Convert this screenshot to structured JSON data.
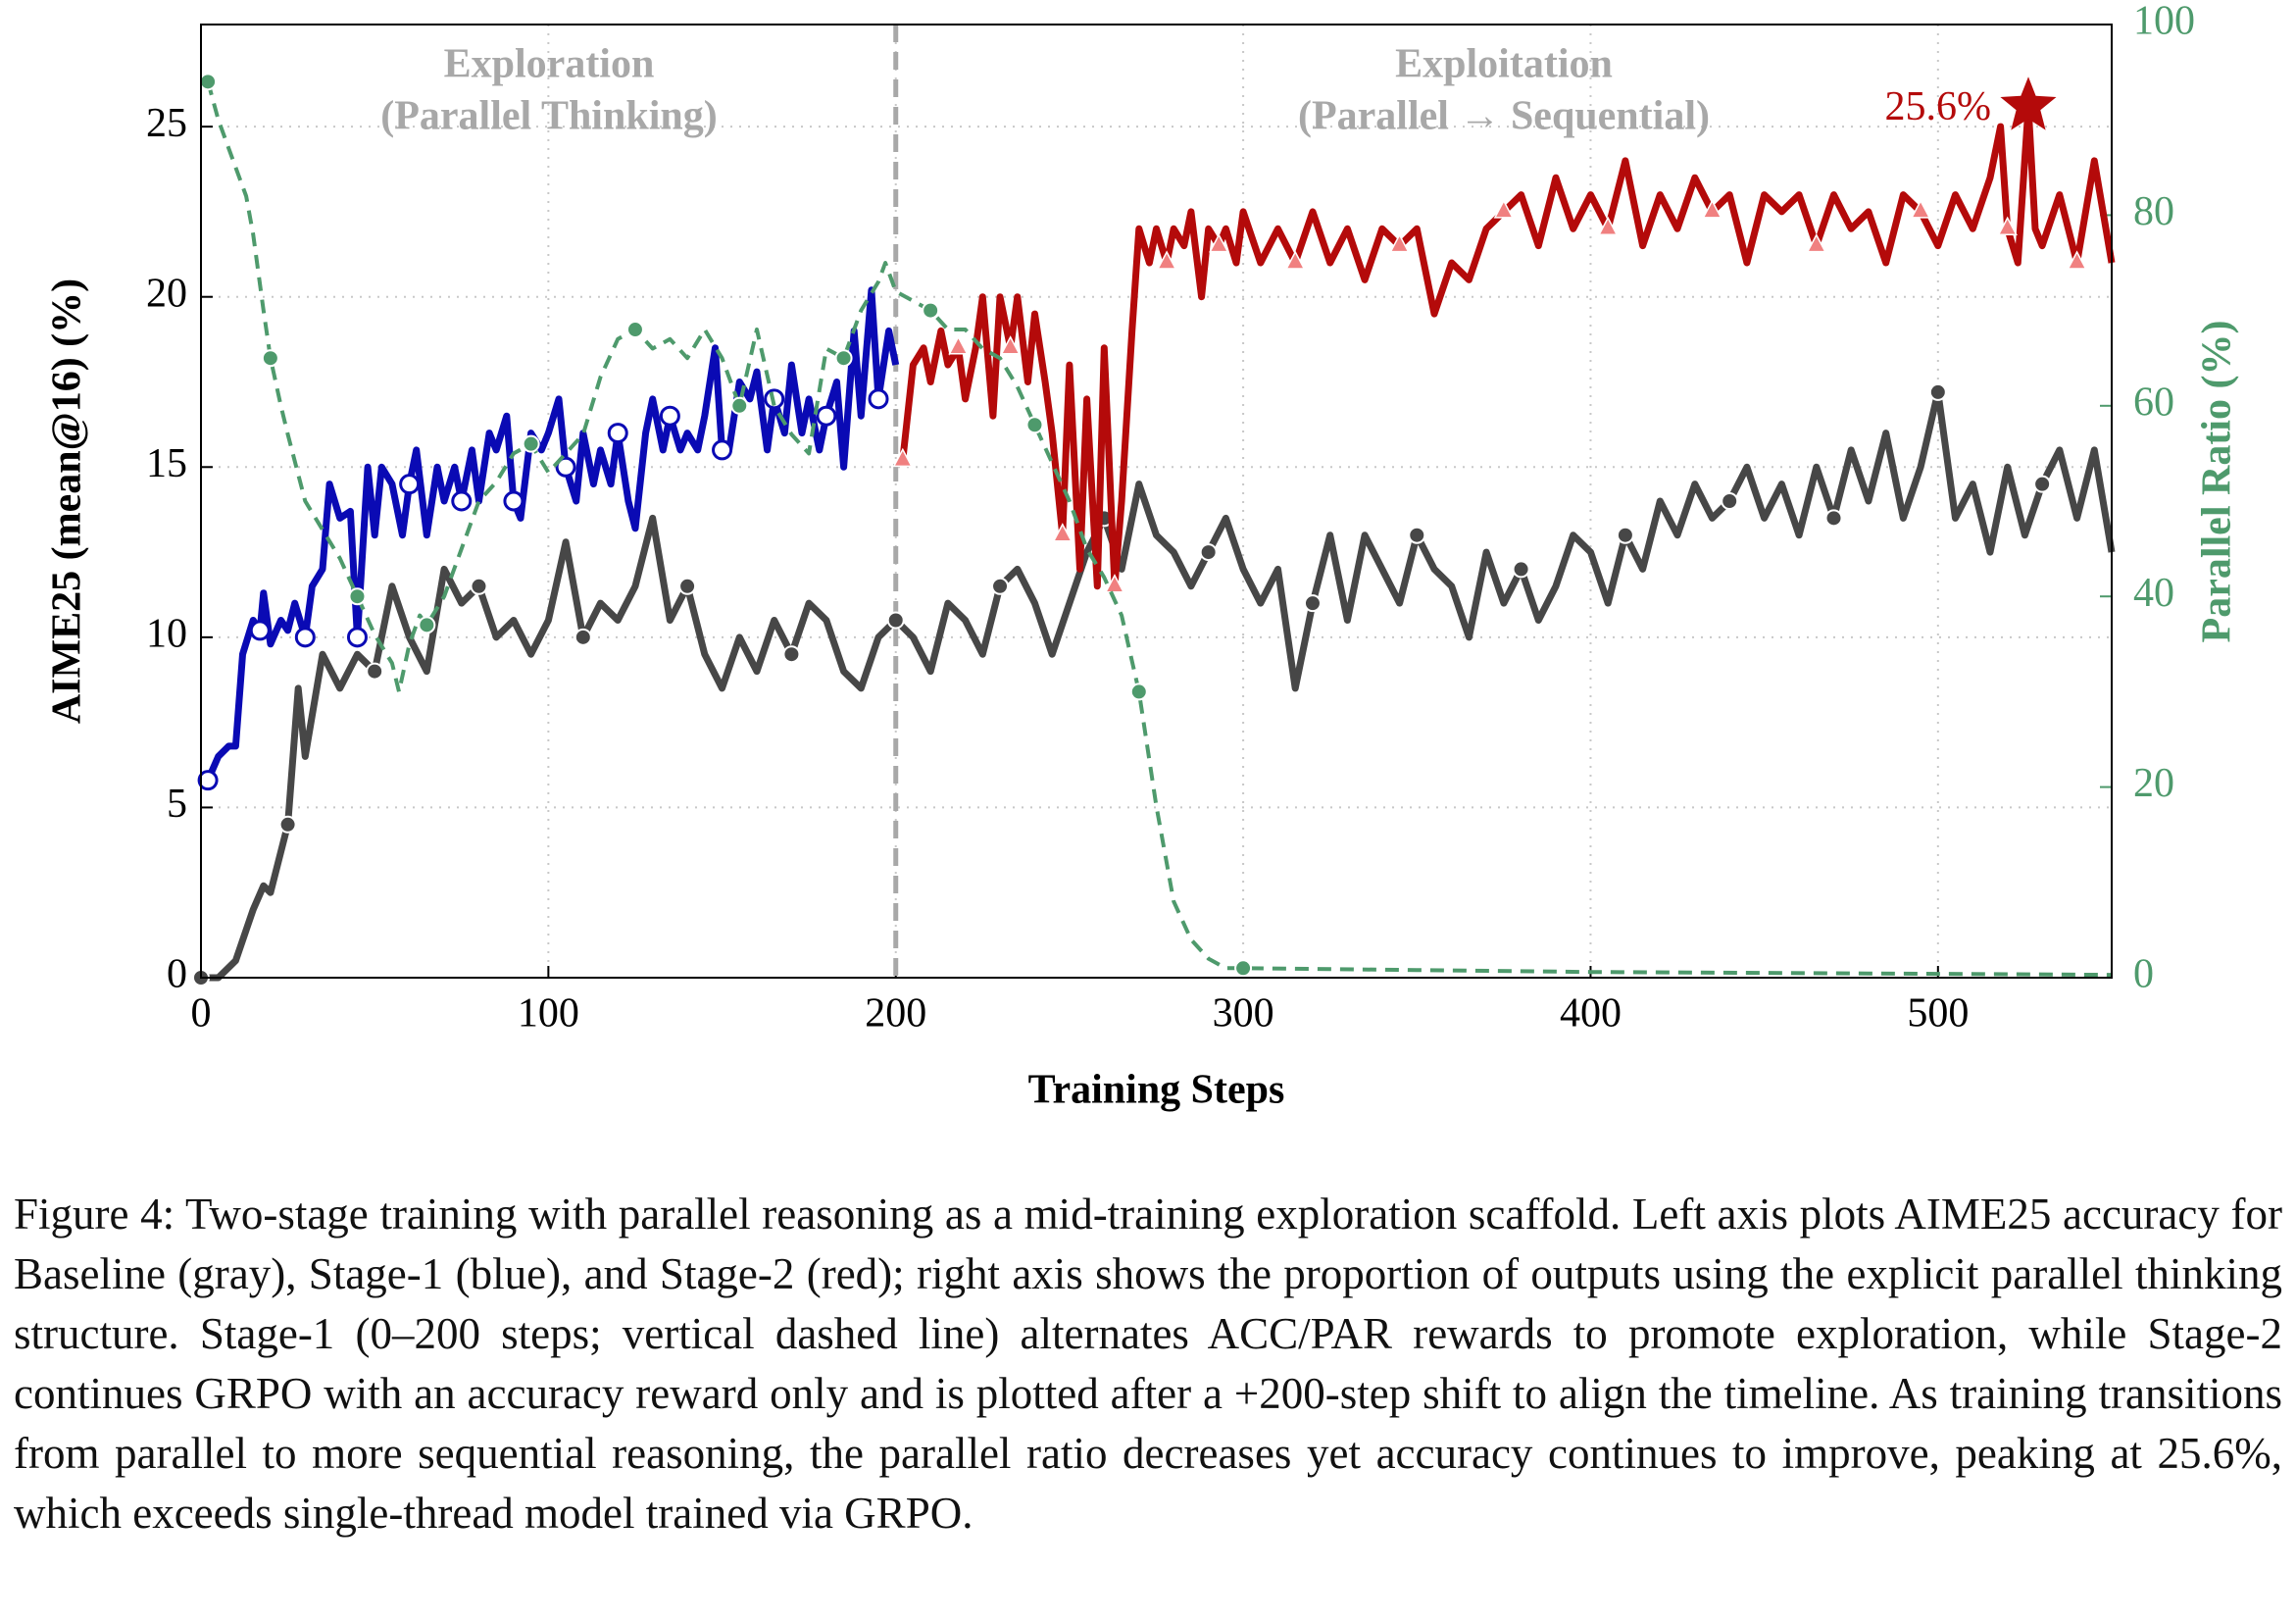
{
  "chart_data": {
    "type": "line",
    "x_label": "Training Steps",
    "y_label": "AIME25 (mean@16) (%)",
    "y2_label": "Parallel Ratio (%)",
    "xlim": [
      0,
      550
    ],
    "xticks": [
      0,
      100,
      200,
      300,
      400,
      500
    ],
    "ylim": [
      0,
      28
    ],
    "yticks": [
      0,
      5,
      10,
      15,
      20,
      25
    ],
    "y2lim": [
      0,
      100
    ],
    "y2ticks": [
      0,
      20,
      40,
      60,
      80,
      100
    ],
    "grid": true,
    "stage_boundary": 200,
    "annotations": [
      "Exploration",
      "(Parallel Thinking)",
      "Exploitation",
      "(Parallel → Sequential)"
    ],
    "peak": {
      "x": 526,
      "value": 25.6,
      "label": "25.6%"
    },
    "series": [
      {
        "color": "#474747",
        "marker": "dot",
        "x": [
          0,
          5,
          10,
          15,
          18,
          20,
          25,
          28,
          30,
          35,
          40,
          45,
          50,
          55,
          60,
          65,
          70,
          75,
          80,
          85,
          90,
          95,
          100,
          105,
          110,
          115,
          120,
          125,
          130,
          135,
          140,
          145,
          150,
          155,
          160,
          165,
          170,
          175,
          180,
          185,
          190,
          195,
          200,
          205,
          210,
          215,
          220,
          225,
          230,
          235,
          240,
          245,
          250,
          255,
          260,
          265,
          270,
          275,
          280,
          285,
          290,
          295,
          300,
          305,
          310,
          315,
          320,
          325,
          330,
          335,
          340,
          345,
          350,
          355,
          360,
          365,
          370,
          375,
          380,
          385,
          390,
          395,
          400,
          405,
          410,
          415,
          420,
          425,
          430,
          435,
          440,
          445,
          450,
          455,
          460,
          465,
          470,
          475,
          480,
          485,
          490,
          495,
          500,
          505,
          510,
          515,
          520,
          525,
          530,
          535,
          540,
          545,
          550
        ],
        "values": [
          0,
          0,
          0.5,
          2,
          2.7,
          2.5,
          4.5,
          8.5,
          6.5,
          9.5,
          8.5,
          9.5,
          9,
          11.5,
          10,
          9,
          12,
          11,
          11.5,
          10,
          10.5,
          9.5,
          10.5,
          12.8,
          10,
          11,
          10.5,
          11.5,
          13.5,
          10.5,
          11.5,
          9.5,
          8.5,
          10,
          9,
          10.5,
          9.5,
          11,
          10.5,
          9,
          8.5,
          10,
          10.5,
          10,
          9,
          11,
          10.5,
          9.5,
          11.5,
          12,
          11,
          9.5,
          11,
          12.5,
          13.5,
          12,
          14.5,
          13,
          12.5,
          11.5,
          12.5,
          13.5,
          12,
          11,
          12,
          8.5,
          11,
          13,
          10.5,
          13,
          12,
          11,
          13,
          12,
          11.5,
          10,
          12.5,
          11,
          12,
          10.5,
          11.5,
          13,
          12.5,
          11,
          13,
          12,
          14,
          13,
          14.5,
          13.5,
          14,
          15,
          13.5,
          14.5,
          13,
          15,
          13.5,
          15.5,
          14,
          16,
          13.5,
          15,
          17.2,
          13.5,
          14.5,
          12.5,
          15,
          13,
          14.5,
          15.5,
          13.5,
          15.5,
          12.5
        ]
      },
      {
        "color": "#0a0ab4",
        "marker": "ring",
        "x": [
          2,
          5,
          8,
          10,
          12,
          15,
          17,
          18,
          20,
          23,
          25,
          27,
          30,
          32,
          35,
          37,
          40,
          43,
          45,
          48,
          50,
          52,
          55,
          58,
          60,
          62,
          65,
          68,
          70,
          73,
          75,
          78,
          80,
          83,
          85,
          88,
          90,
          92,
          95,
          98,
          100,
          103,
          105,
          108,
          110,
          113,
          115,
          118,
          120,
          123,
          125,
          128,
          130,
          133,
          135,
          138,
          140,
          143,
          145,
          148,
          150,
          152,
          155,
          158,
          160,
          163,
          165,
          168,
          170,
          173,
          175,
          178,
          180,
          183,
          185,
          188,
          190,
          193,
          195,
          198,
          200
        ],
        "values": [
          5.8,
          6.5,
          6.8,
          6.8,
          9.5,
          10.5,
          10.2,
          11.3,
          9.8,
          10.5,
          10.2,
          11,
          10,
          11.5,
          12,
          14.5,
          13.5,
          13.7,
          10,
          15,
          13,
          15,
          14.5,
          13,
          14.5,
          15.5,
          13,
          15,
          14,
          15,
          14,
          15.5,
          14,
          16,
          15.5,
          16.5,
          14,
          13.5,
          16,
          15.5,
          16,
          17,
          15,
          14,
          16,
          14.5,
          15.5,
          14.5,
          16,
          14,
          13.2,
          16,
          17,
          15.5,
          16.5,
          15.5,
          16,
          15.5,
          16.5,
          18.5,
          15.5,
          15.5,
          17.5,
          17,
          17.8,
          15.5,
          17,
          16,
          18,
          16,
          17,
          15.5,
          16.5,
          17.5,
          15,
          19,
          16.5,
          20.2,
          17,
          19,
          18
        ]
      },
      {
        "color": "#b40a0a",
        "marker": "triangle",
        "x": [
          202,
          205,
          208,
          210,
          213,
          215,
          218,
          220,
          223,
          225,
          228,
          230,
          233,
          235,
          238,
          240,
          243,
          245,
          248,
          250,
          253,
          255,
          258,
          260,
          263,
          265,
          268,
          270,
          273,
          275,
          278,
          280,
          283,
          285,
          288,
          290,
          293,
          295,
          298,
          300,
          305,
          310,
          315,
          320,
          325,
          330,
          335,
          340,
          345,
          350,
          355,
          360,
          365,
          370,
          375,
          380,
          385,
          390,
          395,
          400,
          405,
          410,
          415,
          420,
          425,
          430,
          435,
          440,
          445,
          450,
          455,
          460,
          465,
          470,
          475,
          480,
          485,
          490,
          495,
          500,
          505,
          510,
          515,
          518,
          520,
          523,
          526,
          528,
          530,
          535,
          540,
          545,
          550
        ],
        "values": [
          15.2,
          18,
          18.5,
          17.5,
          19,
          18,
          18.5,
          17,
          18.5,
          20,
          16.5,
          20,
          18.5,
          20,
          17.5,
          19.5,
          17.5,
          16,
          13,
          18,
          12,
          17,
          11.5,
          18.5,
          11.5,
          14,
          19,
          22,
          21,
          22,
          21,
          22,
          21.5,
          22.5,
          20,
          22,
          21.5,
          22,
          21,
          22.5,
          21,
          22,
          21,
          22.5,
          21,
          22,
          20.5,
          22,
          21.5,
          22,
          19.5,
          21,
          20.5,
          22,
          22.5,
          23,
          21.5,
          23.5,
          22,
          23,
          22,
          24,
          21.5,
          23,
          22,
          23.5,
          22.5,
          23,
          21,
          23,
          22.5,
          23,
          21.5,
          23,
          22,
          22.5,
          21,
          23,
          22.5,
          21.5,
          23,
          22,
          23.5,
          25,
          22,
          21,
          25.6,
          22,
          21.5,
          23,
          21,
          24,
          21
        ]
      },
      {
        "color": "#4e9a6c",
        "marker": "dot",
        "axis": "y2",
        "dashed": true,
        "x": [
          2,
          5,
          10,
          13,
          15,
          18,
          20,
          23,
          25,
          30,
          35,
          40,
          45,
          50,
          55,
          57,
          60,
          63,
          65,
          70,
          75,
          80,
          85,
          90,
          95,
          100,
          105,
          110,
          115,
          120,
          125,
          130,
          135,
          140,
          145,
          150,
          155,
          160,
          165,
          170,
          175,
          180,
          185,
          190,
          195,
          197,
          200,
          205,
          210,
          215,
          220,
          225,
          230,
          235,
          240,
          245,
          250,
          255,
          260,
          265,
          270,
          275,
          280,
          285,
          290,
          295,
          300,
          350,
          400,
          450,
          500,
          550
        ],
        "values": [
          94,
          90,
          85,
          82,
          78,
          70,
          65,
          60,
          57,
          50,
          47,
          44,
          40,
          36,
          33,
          30,
          35,
          38,
          37,
          40,
          45,
          50,
          52,
          55,
          56,
          53,
          55,
          57,
          63,
          67,
          68,
          66,
          67,
          65,
          68,
          65,
          60,
          68,
          60,
          57,
          55,
          66,
          65,
          70,
          73,
          75,
          72,
          71,
          70,
          68,
          68,
          66,
          65,
          62,
          58,
          54,
          50,
          45,
          42,
          38,
          30,
          18,
          8,
          4,
          2,
          1,
          1,
          0.8,
          0.6,
          0.5,
          0.4,
          0.3
        ]
      }
    ]
  },
  "caption": "Figure 4: Two-stage training with parallel reasoning as a mid-training exploration scaffold. Left axis plots AIME25 accuracy for Baseline (gray), Stage-1 (blue), and Stage-2 (red); right axis shows the proportion of outputs using the explicit parallel thinking structure. Stage-1 (0–200 steps; vertical dashed line) alternates ACC/PAR rewards to promote exploration, while Stage-2 continues GRPO with an accuracy reward only and is plotted after a +200-step shift to align the timeline. As training transitions from parallel to more sequential reasoning, the parallel ratio decreases yet accuracy continues to improve, peaking at 25.6%, which exceeds single-thread model trained via GRPO."
}
